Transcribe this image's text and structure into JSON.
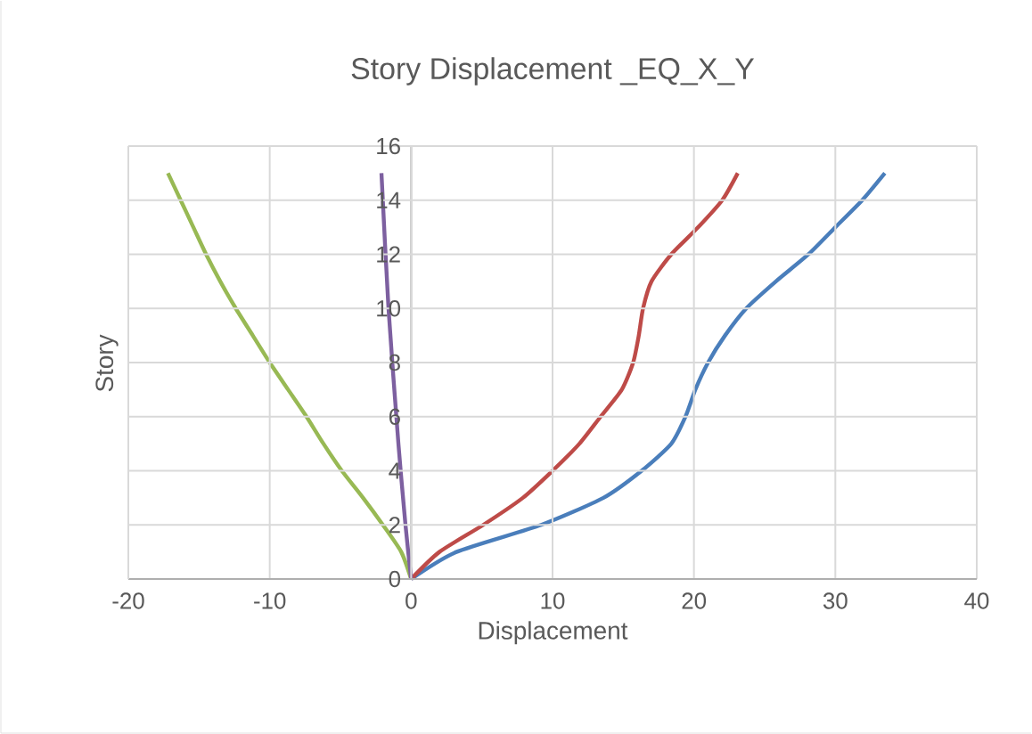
{
  "chart_data": {
    "type": "line",
    "title": "Story Displacement _EQ_X_Y",
    "xlabel": "Displacement",
    "ylabel": "Story",
    "xlim": [
      -20,
      40
    ],
    "xticks": [
      -20,
      -10,
      0,
      10,
      20,
      30,
      40
    ],
    "ylim": [
      0,
      16
    ],
    "yticks": [
      0,
      2,
      4,
      6,
      8,
      10,
      12,
      14,
      16
    ],
    "grid": true,
    "marker": "none",
    "line_style": "solid",
    "series": [
      {
        "color": "#4a7ebb",
        "x": [
          0,
          3.2,
          9.2,
          13.6,
          16.3,
          18.4,
          19.4,
          20.1,
          21.0,
          22.2,
          23.7,
          25.8,
          28.1,
          30.0,
          31.9,
          33.5
        ],
        "values": [
          0,
          1,
          2,
          3,
          4,
          5,
          6,
          7,
          8,
          9,
          10,
          11,
          12,
          13,
          14,
          15
        ]
      },
      {
        "color": "#be4b48",
        "x": [
          0,
          2.0,
          5.1,
          7.9,
          10.0,
          11.9,
          13.4,
          14.9,
          15.7,
          16.1,
          16.4,
          17.0,
          18.4,
          20.3,
          22.0,
          23.1
        ],
        "values": [
          0,
          1,
          2,
          3,
          4,
          5,
          6,
          7,
          8,
          9,
          10,
          11,
          12,
          13,
          14,
          15
        ]
      },
      {
        "color": "#98b954",
        "x": [
          0,
          -0.7,
          -2.0,
          -3.4,
          -4.9,
          -6.2,
          -7.4,
          -8.7,
          -10.0,
          -11.2,
          -12.4,
          -13.5,
          -14.5,
          -15.4,
          -16.3,
          -17.2
        ],
        "values": [
          0,
          1,
          2,
          3,
          4,
          5,
          6,
          7,
          8,
          9,
          10,
          11,
          12,
          13,
          14,
          15
        ]
      },
      {
        "color": "#7d60a0",
        "x": [
          0,
          -0.4,
          -0.9,
          -1.6,
          -2.1
        ],
        "values": [
          0,
          2,
          5,
          10,
          15
        ]
      }
    ]
  }
}
